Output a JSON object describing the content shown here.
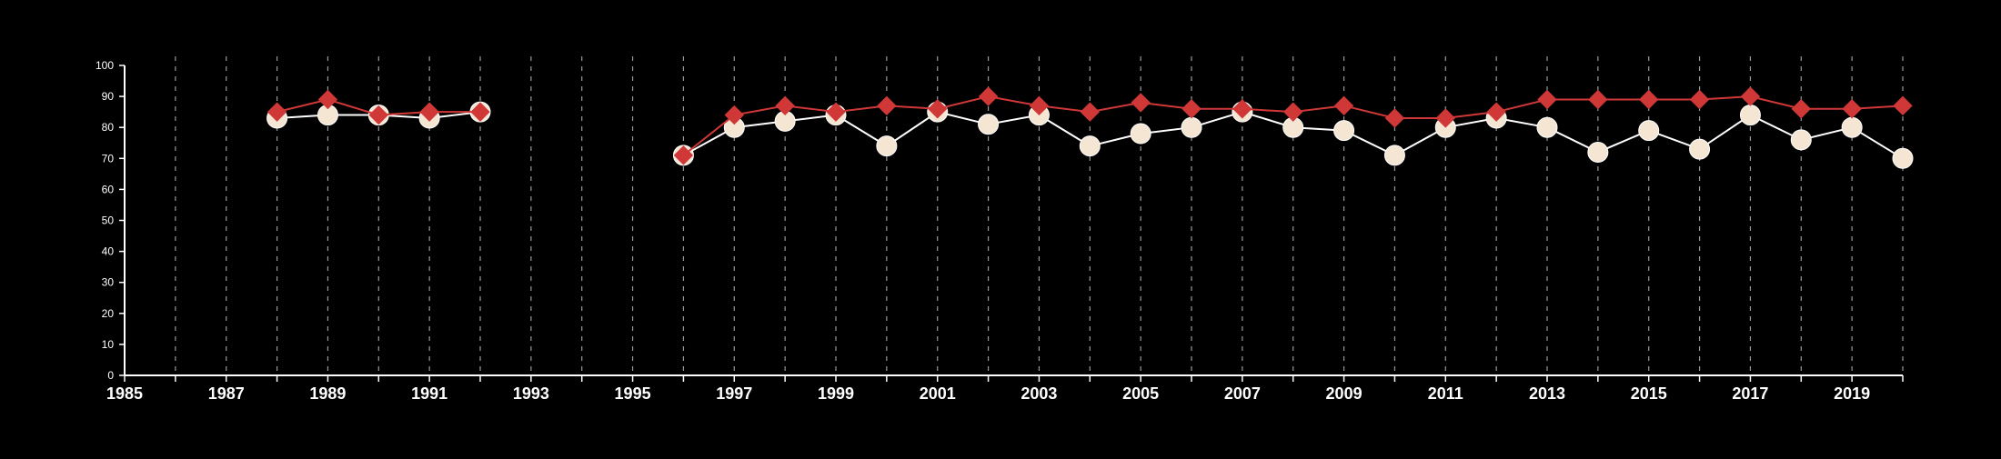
{
  "chart_data": {
    "type": "line",
    "title": "",
    "xlabel": "",
    "ylabel": "",
    "xlim": [
      1985,
      2020
    ],
    "ylim": [
      0,
      100
    ],
    "y_ticks": [
      0,
      10,
      20,
      30,
      40,
      50,
      60,
      70,
      80,
      90,
      100
    ],
    "x_ticks": [
      1985,
      1987,
      1989,
      1991,
      1993,
      1995,
      1997,
      1999,
      2001,
      2003,
      2005,
      2007,
      2009,
      2011,
      2013,
      2015,
      2017,
      2019
    ],
    "x_tick_labels": [
      "1985",
      "1987",
      "1989",
      "1991",
      "1993",
      "1995",
      "1997",
      "1999",
      "2001",
      "2003",
      "2005",
      "2007",
      "2009",
      "2011",
      "2013",
      "2015",
      "2017",
      "2019"
    ],
    "vertical_gridlines": "dashed, every year",
    "background_color": "#000000",
    "series": [
      {
        "marker": "circle",
        "color": "#f5e6d3",
        "points": [
          [
            1988,
            83
          ],
          [
            1989,
            84
          ],
          [
            1990,
            84
          ],
          [
            1991,
            83
          ],
          [
            1992,
            85
          ],
          [
            1996,
            71
          ],
          [
            1997,
            80
          ],
          [
            1998,
            82
          ],
          [
            1999,
            84
          ],
          [
            2000,
            74
          ],
          [
            2001,
            85
          ],
          [
            2002,
            81
          ],
          [
            2003,
            84
          ],
          [
            2004,
            74
          ],
          [
            2005,
            78
          ],
          [
            2006,
            80
          ],
          [
            2007,
            85
          ],
          [
            2008,
            80
          ],
          [
            2009,
            79
          ],
          [
            2010,
            71
          ],
          [
            2011,
            80
          ],
          [
            2012,
            83
          ],
          [
            2013,
            80
          ],
          [
            2014,
            72
          ],
          [
            2015,
            79
          ],
          [
            2016,
            73
          ],
          [
            2017,
            84
          ],
          [
            2018,
            76
          ],
          [
            2019,
            80
          ],
          [
            2020,
            70
          ]
        ]
      },
      {
        "marker": "diamond",
        "color": "#d03838",
        "points": [
          [
            1988,
            85
          ],
          [
            1989,
            89
          ],
          [
            1990,
            84
          ],
          [
            1991,
            85
          ],
          [
            1992,
            85
          ],
          [
            1996,
            71
          ],
          [
            1997,
            84
          ],
          [
            1998,
            87
          ],
          [
            1999,
            85
          ],
          [
            2000,
            87
          ],
          [
            2001,
            86
          ],
          [
            2002,
            90
          ],
          [
            2003,
            87
          ],
          [
            2004,
            85
          ],
          [
            2005,
            88
          ],
          [
            2006,
            86
          ],
          [
            2007,
            86
          ],
          [
            2008,
            85
          ],
          [
            2009,
            87
          ],
          [
            2010,
            83
          ],
          [
            2011,
            83
          ],
          [
            2012,
            85
          ],
          [
            2013,
            89
          ],
          [
            2014,
            89
          ],
          [
            2015,
            89
          ],
          [
            2016,
            89
          ],
          [
            2017,
            90
          ],
          [
            2018,
            86
          ],
          [
            2019,
            86
          ],
          [
            2020,
            87
          ]
        ]
      }
    ]
  }
}
